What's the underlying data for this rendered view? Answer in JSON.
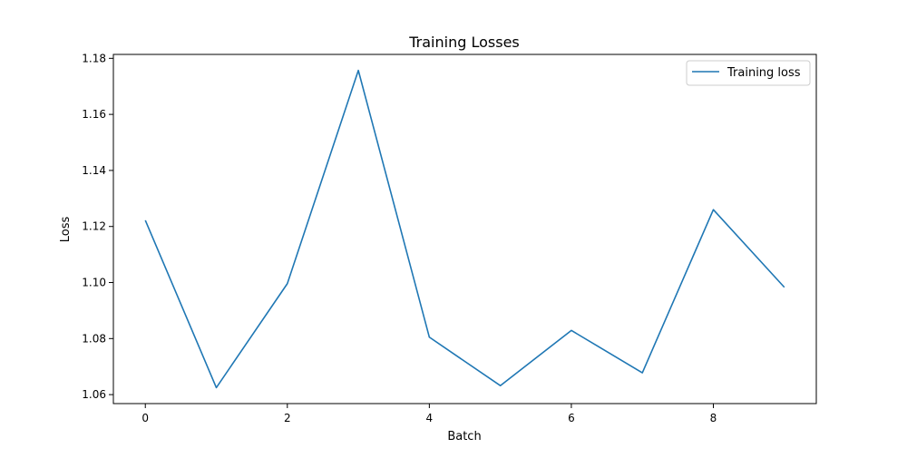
{
  "chart_data": {
    "type": "line",
    "title": "Training Losses",
    "xlabel": "Batch",
    "ylabel": "Loss",
    "xlim": [
      -0.45,
      9.45
    ],
    "ylim": [
      1.0568,
      1.1814
    ],
    "xticks": [
      0,
      2,
      4,
      6,
      8
    ],
    "xtick_labels": [
      "0",
      "2",
      "4",
      "6",
      "8"
    ],
    "yticks": [
      1.06,
      1.08,
      1.1,
      1.12,
      1.14,
      1.16,
      1.18
    ],
    "ytick_labels": [
      "1.06",
      "1.08",
      "1.10",
      "1.12",
      "1.14",
      "1.16",
      "1.18"
    ],
    "grid": false,
    "legend_position": "top-right",
    "x": [
      0,
      1,
      2,
      3,
      4,
      5,
      6,
      7,
      8,
      9
    ],
    "series": [
      {
        "name": "Training loss",
        "color": "#1f77b4",
        "values": [
          1.1222,
          1.0625,
          1.0996,
          1.1757,
          1.0805,
          1.0632,
          1.0829,
          1.0678,
          1.126,
          1.0983
        ]
      }
    ]
  }
}
